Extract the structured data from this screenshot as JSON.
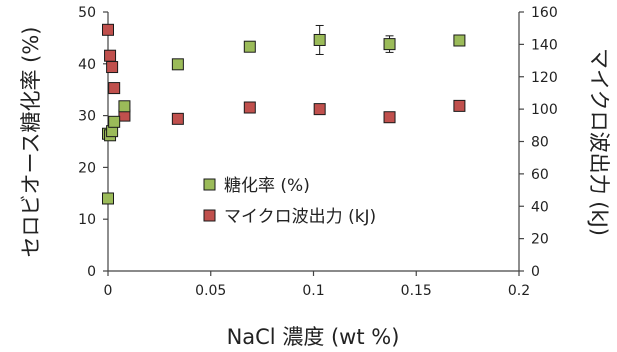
{
  "chart_data": {
    "type": "scatter",
    "xlabel": "NaCl 濃度 (wt %)",
    "ylabel": "セロビオース糖化率 (%)",
    "y2label": "マイクロ波出力 (kJ)",
    "xlim": [
      0,
      0.2
    ],
    "ylim": [
      0,
      50
    ],
    "y2lim": [
      0,
      160
    ],
    "x_ticks": [
      "0",
      "0.05",
      "0.1",
      "0.15",
      "0.2"
    ],
    "y_ticks": [
      "0",
      "10",
      "20",
      "30",
      "40",
      "50"
    ],
    "y2_ticks": [
      "0",
      "20",
      "40",
      "60",
      "80",
      "100",
      "120",
      "140",
      "160"
    ],
    "grid": false,
    "legend_position": "center",
    "series": [
      {
        "name": "糖化率 (%)",
        "axis": "left",
        "color": "#9bbb59",
        "points": [
          {
            "x": 0.0,
            "y": 14.0
          },
          {
            "x": 0.0,
            "y": 26.5
          },
          {
            "x": 0.001,
            "y": 26.2
          },
          {
            "x": 0.002,
            "y": 27.0
          },
          {
            "x": 0.003,
            "y": 28.8
          },
          {
            "x": 0.008,
            "y": 31.8
          },
          {
            "x": 0.034,
            "y": 39.9,
            "err": 1.0
          },
          {
            "x": 0.069,
            "y": 43.3
          },
          {
            "x": 0.103,
            "y": 44.6,
            "err": 2.8
          },
          {
            "x": 0.137,
            "y": 43.8,
            "err": 1.6
          },
          {
            "x": 0.171,
            "y": 44.5
          }
        ]
      },
      {
        "name": "マイクロ波出力 (kJ)",
        "axis": "right",
        "color": "#c0504d",
        "points": [
          {
            "x": 0.0,
            "y": 149
          },
          {
            "x": 0.001,
            "y": 133
          },
          {
            "x": 0.002,
            "y": 126
          },
          {
            "x": 0.003,
            "y": 113
          },
          {
            "x": 0.008,
            "y": 96
          },
          {
            "x": 0.034,
            "y": 94
          },
          {
            "x": 0.069,
            "y": 101
          },
          {
            "x": 0.103,
            "y": 100
          },
          {
            "x": 0.137,
            "y": 95
          },
          {
            "x": 0.171,
            "y": 102
          }
        ]
      }
    ]
  }
}
